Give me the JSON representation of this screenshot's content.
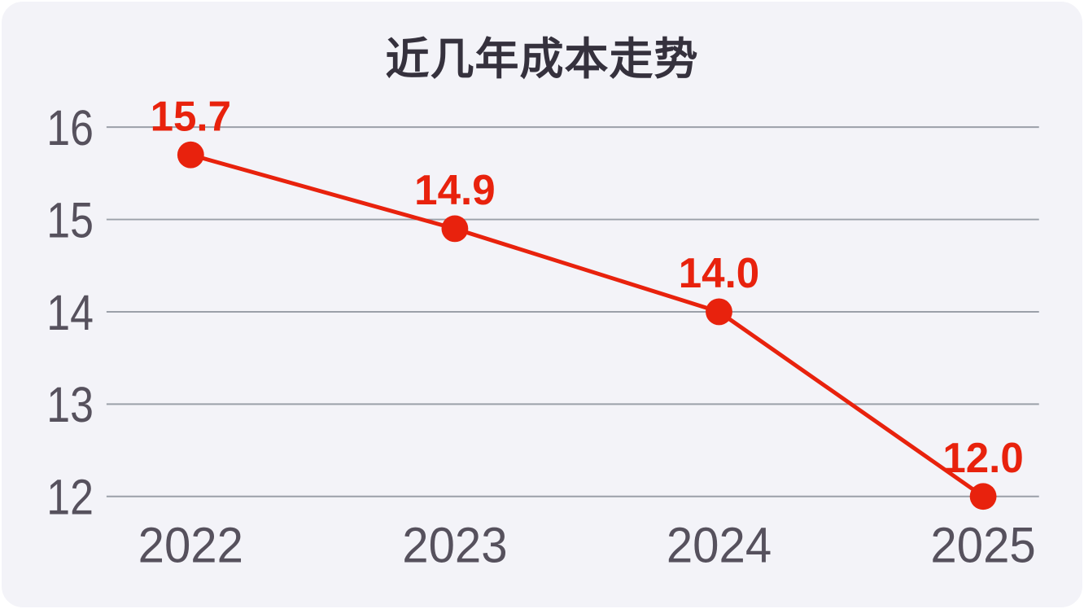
{
  "chart_data": {
    "type": "line",
    "title": "近几年成本走势",
    "categories": [
      "2022",
      "2023",
      "2024",
      "2025"
    ],
    "values": [
      15.7,
      14.9,
      14.0,
      12.0
    ],
    "data_labels": [
      "15.7",
      "14.9",
      "14.0",
      "12.0"
    ],
    "y_ticks": [
      16,
      15,
      14,
      13,
      12
    ],
    "ylim": [
      12,
      16
    ],
    "xlabel": "",
    "ylabel": "",
    "grid": true,
    "legend": false,
    "marker": "circle",
    "colors": {
      "line": "#e8220d",
      "marker": "#e8220d",
      "data_label": "#e8220d",
      "grid_line": "#9ba0a9",
      "axis_text": "#56515d",
      "title_text": "#35313d",
      "panel_background": "#f3f3f8",
      "page_background": "#ffffff"
    }
  }
}
